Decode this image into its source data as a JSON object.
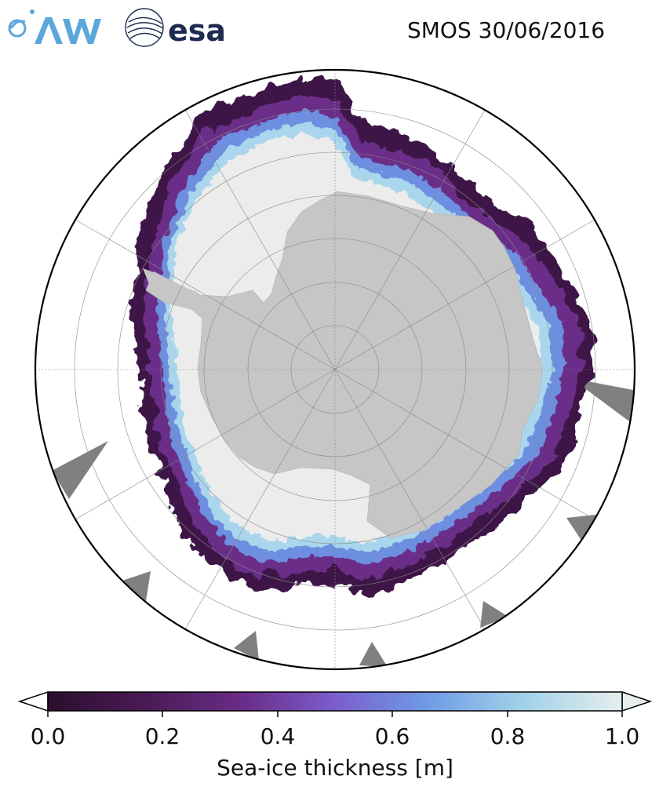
{
  "header": {
    "title": "SMOS 30/06/2016",
    "logos": [
      {
        "name": "AWI",
        "text": "AWI",
        "color": "#5aa7dc"
      },
      {
        "name": "esa",
        "text": "esa",
        "color": "#1e2b50"
      }
    ]
  },
  "map": {
    "projection": "south-polar-stereographic",
    "colors": {
      "land": "#c6c6c6",
      "thick_ice": "#ececec",
      "ocean": "#ffffff",
      "no_data": "#808080",
      "gridline": "#888888"
    }
  },
  "colorbar": {
    "label": "Sea-ice thickness [m]",
    "ticks": [
      "0.0",
      "0.2",
      "0.4",
      "0.6",
      "0.8",
      "1.0"
    ],
    "range": [
      0.0,
      1.0
    ],
    "extend": "both",
    "colormap": [
      "#2b0f2e",
      "#4a1a55",
      "#6a2d88",
      "#7b5ecc",
      "#6e9be6",
      "#9fcfe8",
      "#e6eeee"
    ]
  }
}
